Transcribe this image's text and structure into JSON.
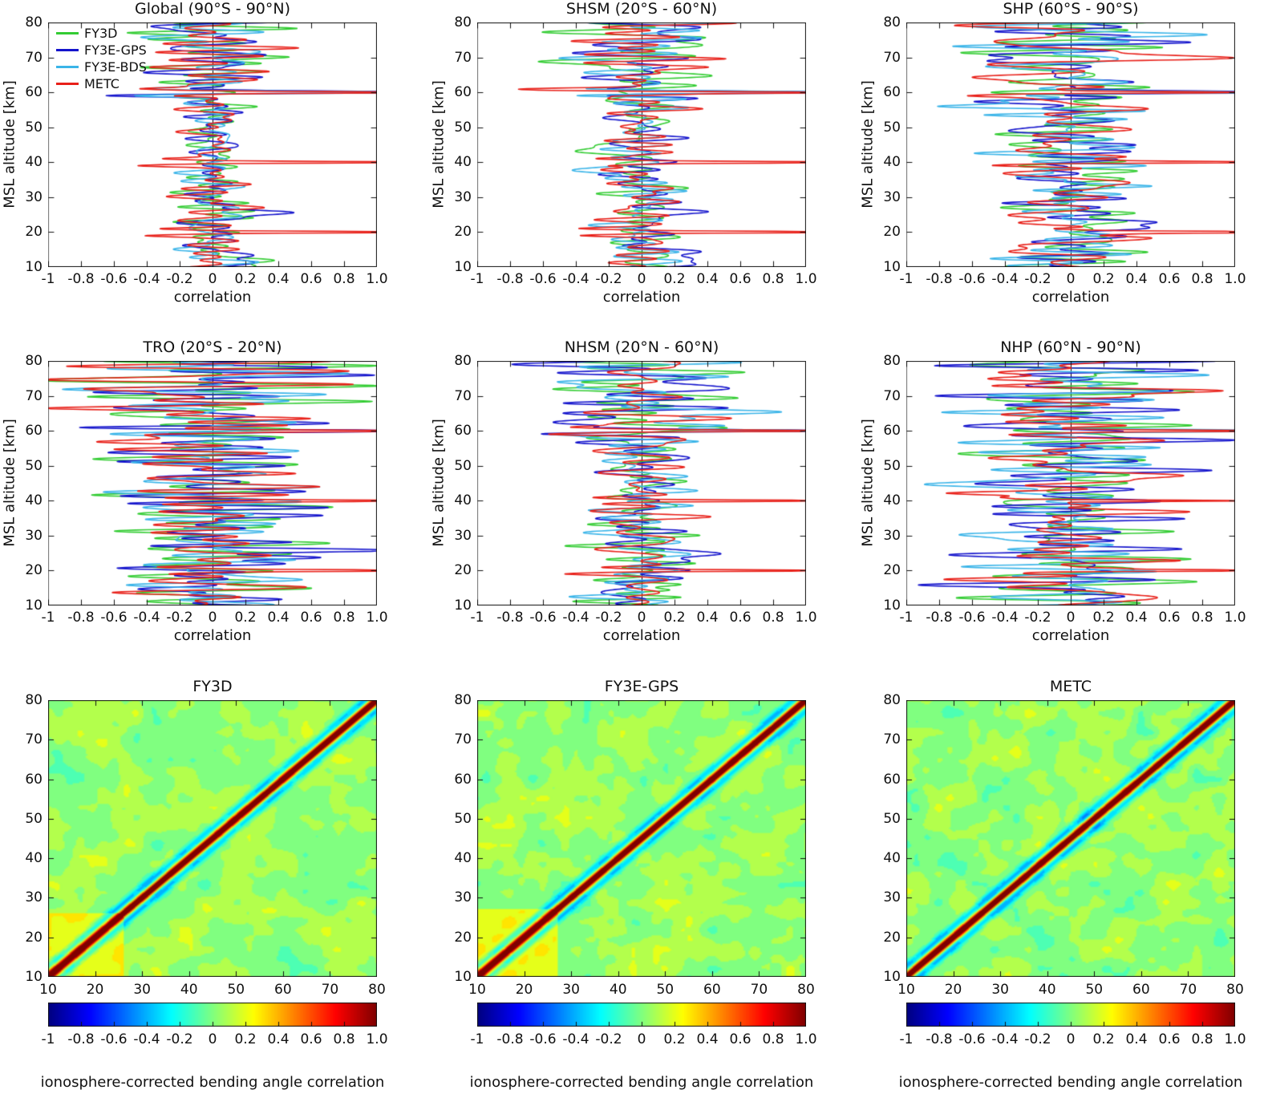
{
  "figure": {
    "background": "#ffffff"
  },
  "line_axes": {
    "xlabel": "correlation",
    "ylabel": "MSL altitude [km]",
    "xlim": [
      -1,
      1
    ],
    "ylim": [
      10,
      80
    ],
    "xtick_labels": [
      "-1",
      "-0.8",
      "-0.6",
      "-0.4",
      "-0.2",
      "0",
      "0.2",
      "0.4",
      "0.6",
      "0.8",
      "1.0"
    ],
    "ytick_labels": [
      "10",
      "20",
      "30",
      "40",
      "50",
      "60",
      "70",
      "80"
    ],
    "zero_line_color": "#000000"
  },
  "chart_data": [
    {
      "type": "line",
      "title": "Global  (90°S - 90°N)",
      "xlabel": "correlation",
      "ylabel": "MSL altitude [km]",
      "xlim": [
        -1,
        1
      ],
      "ylim": [
        10,
        80
      ],
      "noise_amplitude": 0.1,
      "amp_growth": 1.6,
      "legend_position": "top-left",
      "series": [
        {
          "name": "FY3D",
          "color": "#33cc33",
          "spikes": [],
          "bumps": [
            {
              "alt": 12,
              "width": 2.0,
              "amp": 0.22
            }
          ]
        },
        {
          "name": "FY3E-GPS",
          "color": "#1414cc",
          "spikes": [
            60
          ],
          "bumps": [
            {
              "alt": 25,
              "width": 1.6,
              "amp": 0.32
            },
            {
              "alt": 12,
              "width": 2.0,
              "amp": 0.25
            }
          ]
        },
        {
          "name": "FY3E-BDS",
          "color": "#3ab4e8",
          "spikes": [
            60
          ],
          "bumps": []
        },
        {
          "name": "METC",
          "color": "#e82019",
          "spikes": [
            20,
            40,
            60
          ],
          "bumps": []
        }
      ]
    },
    {
      "type": "line",
      "title": "SHSM  (20°S - 60°N)",
      "xlabel": "correlation",
      "ylabel": "MSL altitude [km]",
      "xlim": [
        -1,
        1
      ],
      "ylim": [
        10,
        80
      ],
      "noise_amplitude": 0.12,
      "amp_growth": 1.4,
      "series": [
        {
          "name": "FY3D",
          "color": "#33cc33",
          "spikes": [],
          "bumps": [
            {
              "alt": 43,
              "width": 1.5,
              "amp": -0.45
            }
          ]
        },
        {
          "name": "FY3E-GPS",
          "color": "#1414cc",
          "spikes": [
            60
          ],
          "bumps": [
            {
              "alt": 25,
              "width": 1.6,
              "amp": 0.42
            },
            {
              "alt": 13,
              "width": 2.5,
              "amp": 0.3
            }
          ]
        },
        {
          "name": "FY3E-BDS",
          "color": "#3ab4e8",
          "spikes": [
            60
          ],
          "bumps": [
            {
              "alt": 37,
              "width": 1.5,
              "amp": -0.35
            }
          ]
        },
        {
          "name": "METC",
          "color": "#e82019",
          "spikes": [
            20,
            40,
            60
          ],
          "bumps": []
        }
      ]
    },
    {
      "type": "line",
      "title": "SHP  (60°S - 90°S)",
      "xlabel": "correlation",
      "ylabel": "MSL altitude [km]",
      "xlim": [
        -1,
        1
      ],
      "ylim": [
        10,
        80
      ],
      "noise_amplitude": 0.22,
      "amp_growth": 0.6,
      "series": [
        {
          "name": "FY3D",
          "color": "#33cc33",
          "spikes": [],
          "bumps": [
            {
              "alt": 24,
              "width": 2.0,
              "amp": 0.45
            }
          ]
        },
        {
          "name": "FY3E-GPS",
          "color": "#1414cc",
          "spikes": [
            60
          ],
          "bumps": [
            {
              "alt": 21,
              "width": 2.0,
              "amp": 0.5
            }
          ]
        },
        {
          "name": "FY3E-BDS",
          "color": "#3ab4e8",
          "spikes": [
            60
          ],
          "bumps": [
            {
              "alt": 56.5,
              "width": 1.2,
              "amp": -0.6
            }
          ]
        },
        {
          "name": "METC",
          "color": "#e82019",
          "spikes": [
            20,
            40,
            60
          ],
          "bumps": [
            {
              "alt": 64,
              "width": 1.2,
              "amp": -0.45
            }
          ]
        }
      ]
    },
    {
      "type": "line",
      "title": "TRO  (20°S - 20°N)",
      "xlabel": "correlation",
      "ylabel": "MSL altitude [km]",
      "xlim": [
        -1,
        1
      ],
      "ylim": [
        10,
        80
      ],
      "noise_amplitude": 0.27,
      "amp_growth": 0.8,
      "series": [
        {
          "name": "FY3D",
          "color": "#33cc33",
          "spikes": [],
          "bumps": []
        },
        {
          "name": "FY3E-GPS",
          "color": "#1414cc",
          "spikes": [
            60
          ],
          "bumps": [
            {
              "alt": 25.5,
              "width": 1.8,
              "amp": 0.55
            },
            {
              "alt": 35,
              "width": 1.5,
              "amp": 0.35
            }
          ]
        },
        {
          "name": "FY3E-BDS",
          "color": "#3ab4e8",
          "spikes": [],
          "bumps": []
        },
        {
          "name": "METC",
          "color": "#e82019",
          "spikes": [
            20,
            40,
            60
          ],
          "bumps": [
            {
              "alt": 57,
              "width": 1.3,
              "amp": -0.55
            },
            {
              "alt": 66.5,
              "width": 1.3,
              "amp": -0.6
            }
          ]
        }
      ]
    },
    {
      "type": "line",
      "title": "NHSM  (20°N - 60°N)",
      "xlabel": "correlation",
      "ylabel": "MSL altitude [km]",
      "xlim": [
        -1,
        1
      ],
      "ylim": [
        10,
        80
      ],
      "noise_amplitude": 0.15,
      "amp_growth": 1.2,
      "series": [
        {
          "name": "FY3D",
          "color": "#33cc33",
          "spikes": [],
          "bumps": []
        },
        {
          "name": "FY3E-GPS",
          "color": "#1414cc",
          "spikes": [
            60
          ],
          "bumps": [
            {
              "alt": 25,
              "width": 1.6,
              "amp": 0.4
            },
            {
              "alt": 64,
              "width": 1.5,
              "amp": -0.5
            }
          ]
        },
        {
          "name": "FY3E-BDS",
          "color": "#3ab4e8",
          "spikes": [
            60
          ],
          "bumps": [
            {
              "alt": 65,
              "width": 1.5,
              "amp": 0.5
            }
          ]
        },
        {
          "name": "METC",
          "color": "#e82019",
          "spikes": [
            20,
            40,
            60
          ],
          "bumps": []
        }
      ]
    },
    {
      "type": "line",
      "title": "NHP  (60°N - 90°N)",
      "xlabel": "correlation",
      "ylabel": "MSL altitude [km]",
      "xlim": [
        -1,
        1
      ],
      "ylim": [
        10,
        80
      ],
      "noise_amplitude": 0.27,
      "amp_growth": 0.6,
      "series": [
        {
          "name": "FY3D",
          "color": "#33cc33",
          "spikes": [],
          "bumps": [
            {
              "alt": 23.5,
              "width": 1.5,
              "amp": 0.4
            }
          ]
        },
        {
          "name": "FY3E-GPS",
          "color": "#1414cc",
          "spikes": [],
          "bumps": [
            {
              "alt": 53,
              "width": 1.5,
              "amp": 0.45
            }
          ]
        },
        {
          "name": "FY3E-BDS",
          "color": "#3ab4e8",
          "spikes": [
            60
          ],
          "bumps": [
            {
              "alt": 44,
              "width": 1.6,
              "amp": -0.75
            },
            {
              "alt": 30,
              "width": 1.5,
              "amp": -0.5
            },
            {
              "alt": 75,
              "width": 1.5,
              "amp": 0.5
            }
          ]
        },
        {
          "name": "METC",
          "color": "#e82019",
          "spikes": [
            20,
            40,
            60
          ],
          "bumps": []
        }
      ]
    },
    {
      "type": "heatmap",
      "title": "FY3D",
      "xlim": [
        10,
        80
      ],
      "ylim": [
        10,
        80
      ],
      "tick_labels": [
        "10",
        "20",
        "30",
        "40",
        "50",
        "60",
        "70",
        "80"
      ],
      "background_value": 0.05,
      "noise_amp": 0.13,
      "block": {
        "max_alt": 26,
        "value": 0.27
      },
      "diagonal": {
        "peak": 1.0,
        "width_km": 1.1,
        "negative_lobe": {
          "value": -0.4,
          "offset_km": 2.6
        }
      },
      "colorbar": {
        "tick_labels": [
          "-1",
          "-0.8",
          "-0.6",
          "-0.4",
          "-0.2",
          "0",
          "0.2",
          "0.4",
          "0.6",
          "0.8",
          "1.0"
        ],
        "label": "ionosphere-corrected bending angle correlation"
      },
      "seed": 61
    },
    {
      "type": "heatmap",
      "title": "FY3E-GPS",
      "xlim": [
        10,
        80
      ],
      "ylim": [
        10,
        80
      ],
      "tick_labels": [
        "10",
        "20",
        "30",
        "40",
        "50",
        "60",
        "70",
        "80"
      ],
      "background_value": 0.05,
      "noise_amp": 0.14,
      "block": {
        "max_alt": 27,
        "value": 0.28
      },
      "diagonal": {
        "peak": 1.0,
        "width_km": 1.1,
        "negative_lobe": {
          "value": -0.4,
          "offset_km": 2.6
        }
      },
      "colorbar": {
        "tick_labels": [
          "-1",
          "-0.8",
          "-0.6",
          "-0.4",
          "-0.2",
          "0",
          "0.2",
          "0.4",
          "0.6",
          "0.8",
          "1.0"
        ],
        "label": "ionosphere-corrected bending angle correlation"
      },
      "seed": 71
    },
    {
      "type": "heatmap",
      "title": "METC",
      "xlim": [
        10,
        80
      ],
      "ylim": [
        10,
        80
      ],
      "tick_labels": [
        "10",
        "20",
        "30",
        "40",
        "50",
        "60",
        "70",
        "80"
      ],
      "background_value": 0.04,
      "noise_amp": 0.16,
      "block": null,
      "diagonal": {
        "peak": 1.0,
        "width_km": 1.1,
        "negative_lobe": {
          "value": -0.42,
          "offset_km": 2.6
        }
      },
      "colorbar": {
        "tick_labels": [
          "-1",
          "-0.8",
          "-0.6",
          "-0.4",
          "-0.2",
          "0",
          "0.2",
          "0.4",
          "0.6",
          "0.8",
          "1.0"
        ],
        "label": "ionosphere-corrected bending angle correlation"
      },
      "seed": 81
    }
  ]
}
